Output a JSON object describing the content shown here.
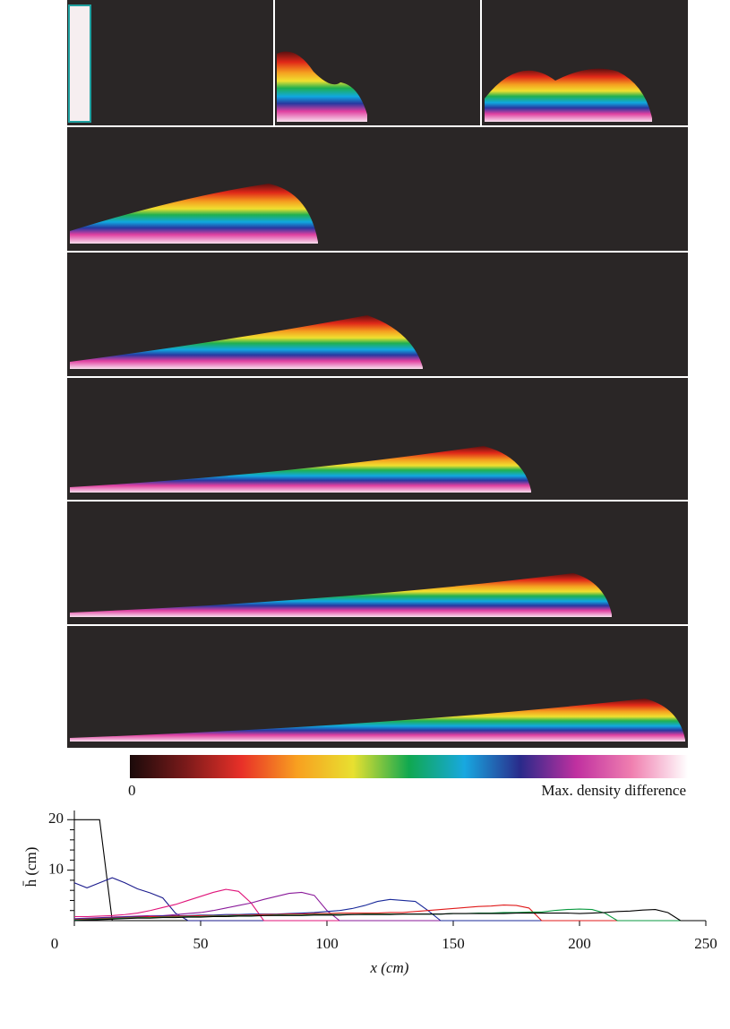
{
  "chart_data": {
    "type": "line",
    "colorbar": {
      "min_label": "0",
      "max_label": "Max. density difference"
    },
    "x_label": "x (cm)",
    "y_label": "h̄ (cm)",
    "xlim": [
      0,
      250
    ],
    "ylim": [
      0,
      22
    ],
    "xticks": [
      0,
      50,
      100,
      150,
      200,
      250
    ],
    "yticks": [
      10,
      20
    ],
    "yminorticks": [
      2,
      4,
      6,
      8,
      12,
      14,
      16,
      18
    ],
    "x": [
      0,
      5,
      10,
      15,
      20,
      25,
      30,
      35,
      40,
      45,
      50,
      55,
      60,
      65,
      70,
      75,
      80,
      85,
      90,
      95,
      100,
      105,
      110,
      115,
      120,
      125,
      130,
      135,
      140,
      145,
      150,
      155,
      160,
      165,
      170,
      175,
      180,
      185,
      190,
      195,
      200,
      205,
      210,
      215,
      220,
      225,
      230,
      235,
      240
    ],
    "series": [
      {
        "color": "#000000",
        "values": [
          20,
          20,
          20,
          0,
          0,
          0,
          0,
          0,
          0,
          0,
          0,
          0,
          0,
          0,
          0,
          0,
          0,
          0,
          0,
          0,
          0,
          0,
          0,
          0,
          0,
          0,
          0,
          0,
          0,
          0,
          0,
          0,
          0,
          0,
          0,
          0,
          0,
          0,
          0,
          0,
          0,
          0,
          0,
          0,
          0,
          0,
          0,
          0,
          0
        ]
      },
      {
        "color": "#1a1a8c",
        "values": [
          7.5,
          6.5,
          7.5,
          8.5,
          7.5,
          6.3,
          5.5,
          4.5,
          1.5,
          0,
          0,
          0,
          0,
          0,
          0,
          0,
          0,
          0,
          0,
          0,
          0,
          0,
          0,
          0,
          0,
          0,
          0,
          0,
          0,
          0,
          0,
          0,
          0,
          0,
          0,
          0,
          0,
          0,
          0,
          0,
          0,
          0,
          0,
          0,
          0,
          0,
          0,
          0,
          0
        ]
      },
      {
        "color": "#e0147a",
        "values": [
          0.8,
          0.8,
          0.9,
          1,
          1.2,
          1.5,
          2,
          2.6,
          3.2,
          4,
          4.8,
          5.6,
          6.2,
          5.8,
          3.5,
          0,
          0,
          0,
          0,
          0,
          0,
          0,
          0,
          0,
          0,
          0,
          0,
          0,
          0,
          0,
          0,
          0,
          0,
          0,
          0,
          0,
          0,
          0,
          0,
          0,
          0,
          0,
          0,
          0,
          0,
          0,
          0,
          0,
          0
        ]
      },
      {
        "color": "#8a1a9a",
        "values": [
          0.4,
          0.5,
          0.6,
          0.7,
          0.8,
          0.9,
          1,
          1,
          1.2,
          1.4,
          1.6,
          2,
          2.5,
          3,
          3.5,
          4.2,
          4.8,
          5.4,
          5.6,
          5,
          2,
          0,
          0,
          0,
          0,
          0,
          0,
          0,
          0,
          0,
          0,
          0,
          0,
          0,
          0,
          0,
          0,
          0,
          0,
          0,
          0,
          0,
          0,
          0,
          0,
          0,
          0,
          0,
          0
        ]
      },
      {
        "color": "#1a2a9a",
        "values": [
          0.3,
          0.4,
          0.5,
          0.6,
          0.7,
          0.8,
          0.8,
          0.9,
          1,
          1,
          1.1,
          1.1,
          1.2,
          1.2,
          1.3,
          1.3,
          1.3,
          1.4,
          1.5,
          1.6,
          1.8,
          2,
          2.4,
          3,
          3.8,
          4.2,
          4,
          3.8,
          2,
          0,
          0,
          0,
          0,
          0,
          0,
          0,
          0,
          0,
          0,
          0,
          0,
          0,
          0,
          0,
          0,
          0,
          0,
          0,
          0
        ]
      },
      {
        "color": "#e01a1a",
        "values": [
          0.2,
          0.3,
          0.4,
          0.5,
          0.6,
          0.7,
          0.8,
          0.8,
          0.9,
          0.9,
          1,
          1,
          1,
          1.1,
          1.1,
          1.2,
          1.2,
          1.3,
          1.3,
          1.4,
          1.4,
          1.5,
          1.5,
          1.5,
          1.5,
          1.6,
          1.6,
          1.8,
          2,
          2.2,
          2.4,
          2.6,
          2.8,
          2.9,
          3.1,
          3,
          2.5,
          0,
          0,
          0,
          0,
          0,
          0,
          0,
          0,
          0,
          0,
          0,
          0
        ]
      },
      {
        "color": "#0a9a40",
        "values": [
          0.1,
          0.2,
          0.3,
          0.4,
          0.5,
          0.6,
          0.6,
          0.7,
          0.7,
          0.8,
          0.8,
          0.9,
          0.9,
          1,
          1,
          1,
          1.1,
          1.1,
          1.1,
          1.2,
          1.2,
          1.2,
          1.2,
          1.3,
          1.3,
          1.3,
          1.3,
          1.3,
          1.3,
          1.3,
          1.4,
          1.4,
          1.5,
          1.5,
          1.6,
          1.6,
          1.7,
          1.7,
          2,
          2.2,
          2.3,
          2.2,
          1.5,
          0,
          0,
          0,
          0,
          0,
          0
        ]
      },
      {
        "color": "#000000",
        "values": [
          0,
          0.1,
          0.2,
          0.3,
          0.4,
          0.5,
          0.5,
          0.6,
          0.6,
          0.7,
          0.7,
          0.8,
          0.8,
          0.9,
          0.9,
          1,
          1,
          1,
          1,
          1.1,
          1.1,
          1.1,
          1.2,
          1.2,
          1.2,
          1.2,
          1.3,
          1.3,
          1.3,
          1.3,
          1.4,
          1.4,
          1.4,
          1.4,
          1.4,
          1.5,
          1.5,
          1.5,
          1.5,
          1.5,
          1.4,
          1.5,
          1.6,
          1.8,
          1.9,
          2.1,
          2.2,
          1.6,
          0
        ]
      }
    ]
  }
}
